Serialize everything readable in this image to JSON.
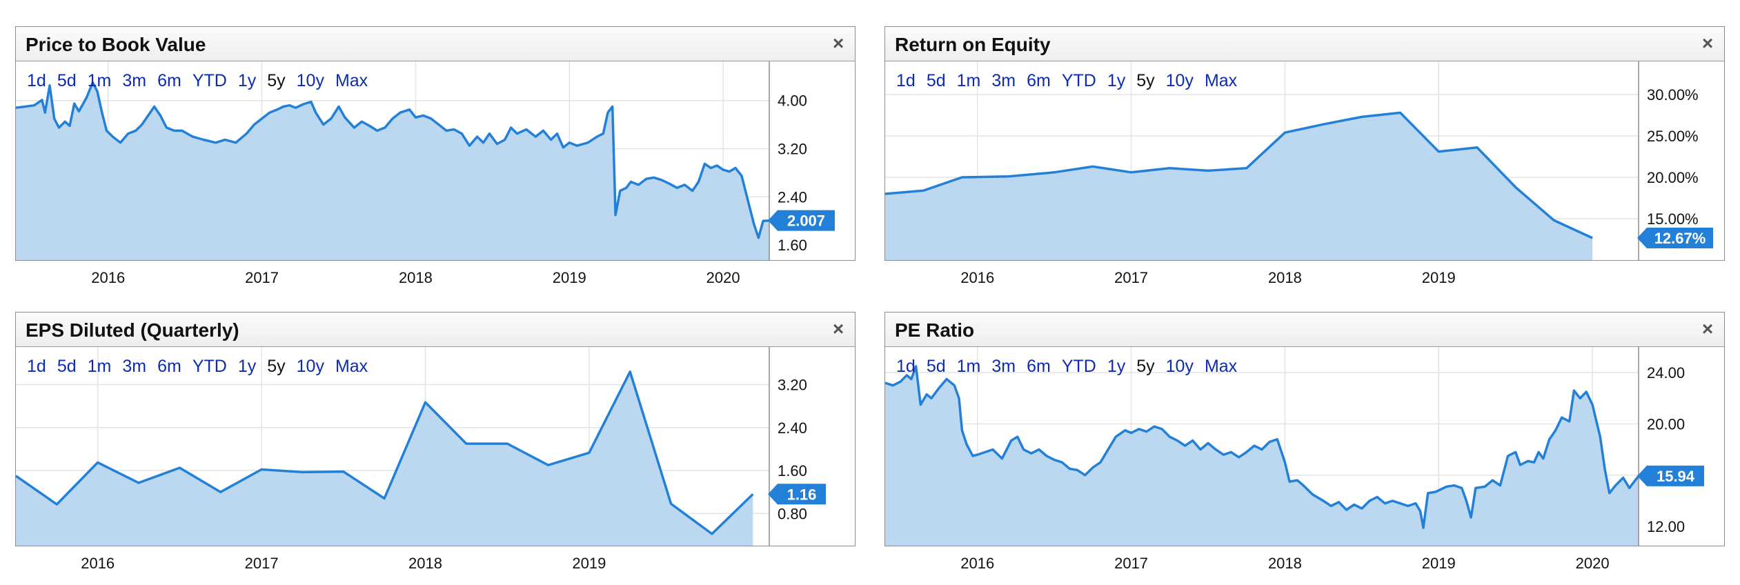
{
  "range_buttons": [
    "1d",
    "5d",
    "1m",
    "3m",
    "6m",
    "YTD",
    "1y",
    "5y",
    "10y",
    "Max"
  ],
  "active_range": "5y",
  "close_symbol": "×",
  "colors": {
    "line": "#2380d8",
    "fill": "#bcd8f1",
    "badge": "#2380d8",
    "grid": "#e3e3e3"
  },
  "chart_data": [
    {
      "type": "area",
      "title": "Price to Book Value",
      "x_ticks": [
        2016,
        2017,
        2018,
        2019,
        2020
      ],
      "xlim": [
        2015.4,
        2020.3
      ],
      "y_ticks": [
        4.0,
        3.2,
        2.4,
        1.6
      ],
      "y_tick_labels": [
        "4.00",
        "3.20",
        "2.40",
        "1.60"
      ],
      "ylim": [
        1.35,
        4.65
      ],
      "last_value_label": "2.007",
      "grid": true,
      "points": [
        [
          2015.4,
          3.88
        ],
        [
          2015.46,
          3.9
        ],
        [
          2015.52,
          3.92
        ],
        [
          2015.57,
          4.01
        ],
        [
          2015.59,
          3.8
        ],
        [
          2015.62,
          4.25
        ],
        [
          2015.65,
          3.7
        ],
        [
          2015.68,
          3.55
        ],
        [
          2015.72,
          3.65
        ],
        [
          2015.75,
          3.58
        ],
        [
          2015.78,
          3.95
        ],
        [
          2015.81,
          3.82
        ],
        [
          2015.86,
          4.05
        ],
        [
          2015.9,
          4.3
        ],
        [
          2015.93,
          4.15
        ],
        [
          2015.96,
          3.8
        ],
        [
          2015.99,
          3.5
        ],
        [
          2016.03,
          3.4
        ],
        [
          2016.08,
          3.3
        ],
        [
          2016.13,
          3.45
        ],
        [
          2016.18,
          3.5
        ],
        [
          2016.22,
          3.6
        ],
        [
          2016.26,
          3.75
        ],
        [
          2016.3,
          3.9
        ],
        [
          2016.34,
          3.75
        ],
        [
          2016.38,
          3.55
        ],
        [
          2016.43,
          3.5
        ],
        [
          2016.48,
          3.5
        ],
        [
          2016.55,
          3.4
        ],
        [
          2016.62,
          3.35
        ],
        [
          2016.7,
          3.3
        ],
        [
          2016.76,
          3.35
        ],
        [
          2016.83,
          3.3
        ],
        [
          2016.9,
          3.45
        ],
        [
          2016.95,
          3.6
        ],
        [
          2017.0,
          3.7
        ],
        [
          2017.05,
          3.8
        ],
        [
          2017.1,
          3.85
        ],
        [
          2017.14,
          3.9
        ],
        [
          2017.18,
          3.92
        ],
        [
          2017.22,
          3.88
        ],
        [
          2017.27,
          3.94
        ],
        [
          2017.32,
          3.98
        ],
        [
          2017.35,
          3.8
        ],
        [
          2017.4,
          3.6
        ],
        [
          2017.45,
          3.7
        ],
        [
          2017.5,
          3.9
        ],
        [
          2017.54,
          3.72
        ],
        [
          2017.6,
          3.55
        ],
        [
          2017.65,
          3.65
        ],
        [
          2017.7,
          3.58
        ],
        [
          2017.75,
          3.5
        ],
        [
          2017.8,
          3.55
        ],
        [
          2017.85,
          3.7
        ],
        [
          2017.9,
          3.8
        ],
        [
          2017.96,
          3.85
        ],
        [
          2018.0,
          3.72
        ],
        [
          2018.05,
          3.75
        ],
        [
          2018.1,
          3.7
        ],
        [
          2018.15,
          3.6
        ],
        [
          2018.2,
          3.5
        ],
        [
          2018.25,
          3.52
        ],
        [
          2018.3,
          3.45
        ],
        [
          2018.35,
          3.25
        ],
        [
          2018.4,
          3.4
        ],
        [
          2018.44,
          3.3
        ],
        [
          2018.48,
          3.45
        ],
        [
          2018.53,
          3.28
        ],
        [
          2018.58,
          3.35
        ],
        [
          2018.62,
          3.55
        ],
        [
          2018.66,
          3.45
        ],
        [
          2018.72,
          3.52
        ],
        [
          2018.78,
          3.4
        ],
        [
          2018.83,
          3.5
        ],
        [
          2018.88,
          3.35
        ],
        [
          2018.92,
          3.45
        ],
        [
          2018.96,
          3.22
        ],
        [
          2019.0,
          3.3
        ],
        [
          2019.05,
          3.25
        ],
        [
          2019.12,
          3.3
        ],
        [
          2019.18,
          3.4
        ],
        [
          2019.22,
          3.45
        ],
        [
          2019.25,
          3.8
        ],
        [
          2019.28,
          3.9
        ],
        [
          2019.3,
          2.1
        ],
        [
          2019.33,
          2.5
        ],
        [
          2019.37,
          2.55
        ],
        [
          2019.4,
          2.65
        ],
        [
          2019.45,
          2.6
        ],
        [
          2019.5,
          2.7
        ],
        [
          2019.55,
          2.72
        ],
        [
          2019.6,
          2.68
        ],
        [
          2019.65,
          2.62
        ],
        [
          2019.7,
          2.55
        ],
        [
          2019.75,
          2.6
        ],
        [
          2019.8,
          2.5
        ],
        [
          2019.84,
          2.65
        ],
        [
          2019.88,
          2.95
        ],
        [
          2019.92,
          2.88
        ],
        [
          2019.96,
          2.92
        ],
        [
          2020.0,
          2.85
        ],
        [
          2020.04,
          2.82
        ],
        [
          2020.08,
          2.88
        ],
        [
          2020.12,
          2.75
        ],
        [
          2020.16,
          2.35
        ],
        [
          2020.2,
          1.95
        ],
        [
          2020.23,
          1.72
        ],
        [
          2020.26,
          2.0
        ],
        [
          2020.3,
          2.007
        ]
      ]
    },
    {
      "type": "area",
      "title": "Return on Equity",
      "x_ticks": [
        2016,
        2017,
        2018,
        2019
      ],
      "xlim": [
        2015.4,
        2020.3
      ],
      "y_ticks": [
        30,
        25,
        20,
        15
      ],
      "y_tick_labels": [
        "30.00%",
        "25.00%",
        "20.00%",
        "15.00%"
      ],
      "ylim": [
        10.0,
        34.0
      ],
      "last_value_label": "12.67%",
      "grid": true,
      "points": [
        [
          2015.4,
          18.0
        ],
        [
          2015.65,
          18.4
        ],
        [
          2015.9,
          20.0
        ],
        [
          2016.2,
          20.1
        ],
        [
          2016.5,
          20.6
        ],
        [
          2016.75,
          21.3
        ],
        [
          2017.0,
          20.6
        ],
        [
          2017.25,
          21.1
        ],
        [
          2017.5,
          20.8
        ],
        [
          2017.75,
          21.1
        ],
        [
          2018.0,
          25.4
        ],
        [
          2018.25,
          26.4
        ],
        [
          2018.5,
          27.3
        ],
        [
          2018.75,
          27.8
        ],
        [
          2019.0,
          23.1
        ],
        [
          2019.25,
          23.6
        ],
        [
          2019.5,
          18.8
        ],
        [
          2019.75,
          14.8
        ],
        [
          2020.0,
          12.67
        ]
      ]
    },
    {
      "type": "area",
      "title": "EPS Diluted (Quarterly)",
      "x_ticks": [
        2016,
        2017,
        2018,
        2019
      ],
      "xlim": [
        2015.5,
        2020.1
      ],
      "y_ticks": [
        3.2,
        2.4,
        1.6,
        0.8
      ],
      "y_tick_labels": [
        "3.20",
        "2.40",
        "1.60",
        "0.80"
      ],
      "ylim": [
        0.2,
        3.9
      ],
      "last_value_label": "1.16",
      "grid": true,
      "points": [
        [
          2015.5,
          1.5
        ],
        [
          2015.75,
          0.97
        ],
        [
          2016.0,
          1.75
        ],
        [
          2016.25,
          1.37
        ],
        [
          2016.5,
          1.65
        ],
        [
          2016.75,
          1.2
        ],
        [
          2017.0,
          1.62
        ],
        [
          2017.25,
          1.57
        ],
        [
          2017.5,
          1.58
        ],
        [
          2017.75,
          1.08
        ],
        [
          2018.0,
          2.87
        ],
        [
          2018.25,
          2.1
        ],
        [
          2018.5,
          2.1
        ],
        [
          2018.75,
          1.7
        ],
        [
          2019.0,
          1.93
        ],
        [
          2019.25,
          3.44
        ],
        [
          2019.5,
          0.98
        ],
        [
          2019.75,
          0.42
        ],
        [
          2020.0,
          1.16
        ]
      ]
    },
    {
      "type": "area",
      "title": "PE Ratio",
      "x_ticks": [
        2016,
        2017,
        2018,
        2019,
        2020
      ],
      "xlim": [
        2015.4,
        2020.3
      ],
      "y_ticks": [
        24,
        20,
        16,
        12
      ],
      "y_tick_labels": [
        "24.00",
        "20.00",
        "16.00",
        "12.00"
      ],
      "ylim": [
        10.5,
        26.0
      ],
      "last_value_label": "15.94",
      "grid": true,
      "points": [
        [
          2015.4,
          23.2
        ],
        [
          2015.45,
          23.0
        ],
        [
          2015.5,
          23.3
        ],
        [
          2015.54,
          23.8
        ],
        [
          2015.57,
          23.5
        ],
        [
          2015.6,
          24.5
        ],
        [
          2015.63,
          21.5
        ],
        [
          2015.67,
          22.3
        ],
        [
          2015.7,
          22.0
        ],
        [
          2015.75,
          22.8
        ],
        [
          2015.8,
          23.5
        ],
        [
          2015.85,
          23.0
        ],
        [
          2015.88,
          22.0
        ],
        [
          2015.9,
          19.5
        ],
        [
          2015.93,
          18.4
        ],
        [
          2015.97,
          17.5
        ],
        [
          2016.0,
          17.6
        ],
        [
          2016.05,
          17.8
        ],
        [
          2016.1,
          18.0
        ],
        [
          2016.16,
          17.3
        ],
        [
          2016.22,
          18.7
        ],
        [
          2016.26,
          19.0
        ],
        [
          2016.3,
          18.0
        ],
        [
          2016.35,
          17.7
        ],
        [
          2016.4,
          18.0
        ],
        [
          2016.45,
          17.5
        ],
        [
          2016.5,
          17.2
        ],
        [
          2016.55,
          17.0
        ],
        [
          2016.6,
          16.5
        ],
        [
          2016.65,
          16.4
        ],
        [
          2016.7,
          16.0
        ],
        [
          2016.75,
          16.6
        ],
        [
          2016.8,
          17.0
        ],
        [
          2016.85,
          18.0
        ],
        [
          2016.9,
          19.0
        ],
        [
          2016.96,
          19.5
        ],
        [
          2017.0,
          19.3
        ],
        [
          2017.05,
          19.6
        ],
        [
          2017.1,
          19.4
        ],
        [
          2017.15,
          19.8
        ],
        [
          2017.2,
          19.6
        ],
        [
          2017.25,
          19.0
        ],
        [
          2017.3,
          18.7
        ],
        [
          2017.35,
          18.3
        ],
        [
          2017.4,
          18.7
        ],
        [
          2017.45,
          18.0
        ],
        [
          2017.5,
          18.5
        ],
        [
          2017.55,
          18.0
        ],
        [
          2017.6,
          17.6
        ],
        [
          2017.65,
          17.8
        ],
        [
          2017.7,
          17.4
        ],
        [
          2017.75,
          17.8
        ],
        [
          2017.8,
          18.3
        ],
        [
          2017.85,
          18.0
        ],
        [
          2017.9,
          18.6
        ],
        [
          2017.95,
          18.8
        ],
        [
          2018.0,
          17.0
        ],
        [
          2018.03,
          15.5
        ],
        [
          2018.08,
          15.6
        ],
        [
          2018.12,
          15.2
        ],
        [
          2018.18,
          14.5
        ],
        [
          2018.25,
          14.0
        ],
        [
          2018.3,
          13.6
        ],
        [
          2018.35,
          13.9
        ],
        [
          2018.4,
          13.3
        ],
        [
          2018.45,
          13.7
        ],
        [
          2018.5,
          13.4
        ],
        [
          2018.55,
          14.0
        ],
        [
          2018.6,
          14.3
        ],
        [
          2018.65,
          13.8
        ],
        [
          2018.7,
          14.0
        ],
        [
          2018.75,
          13.8
        ],
        [
          2018.8,
          13.6
        ],
        [
          2018.85,
          13.8
        ],
        [
          2018.88,
          13.2
        ],
        [
          2018.9,
          11.9
        ],
        [
          2018.93,
          14.6
        ],
        [
          2018.98,
          14.7
        ],
        [
          2019.05,
          15.1
        ],
        [
          2019.1,
          15.2
        ],
        [
          2019.15,
          15.0
        ],
        [
          2019.18,
          14.0
        ],
        [
          2019.21,
          12.7
        ],
        [
          2019.24,
          15.0
        ],
        [
          2019.3,
          15.1
        ],
        [
          2019.35,
          15.6
        ],
        [
          2019.4,
          15.2
        ],
        [
          2019.45,
          17.5
        ],
        [
          2019.5,
          17.8
        ],
        [
          2019.53,
          16.8
        ],
        [
          2019.58,
          17.1
        ],
        [
          2019.62,
          17.0
        ],
        [
          2019.65,
          17.8
        ],
        [
          2019.68,
          17.3
        ],
        [
          2019.72,
          18.8
        ],
        [
          2019.76,
          19.5
        ],
        [
          2019.8,
          20.5
        ],
        [
          2019.85,
          20.2
        ],
        [
          2019.88,
          22.6
        ],
        [
          2019.92,
          22.0
        ],
        [
          2019.96,
          22.5
        ],
        [
          2020.0,
          21.5
        ],
        [
          2020.05,
          19.0
        ],
        [
          2020.08,
          16.5
        ],
        [
          2020.11,
          14.6
        ],
        [
          2020.15,
          15.2
        ],
        [
          2020.2,
          15.8
        ],
        [
          2020.24,
          15.0
        ],
        [
          2020.3,
          15.94
        ]
      ]
    }
  ]
}
